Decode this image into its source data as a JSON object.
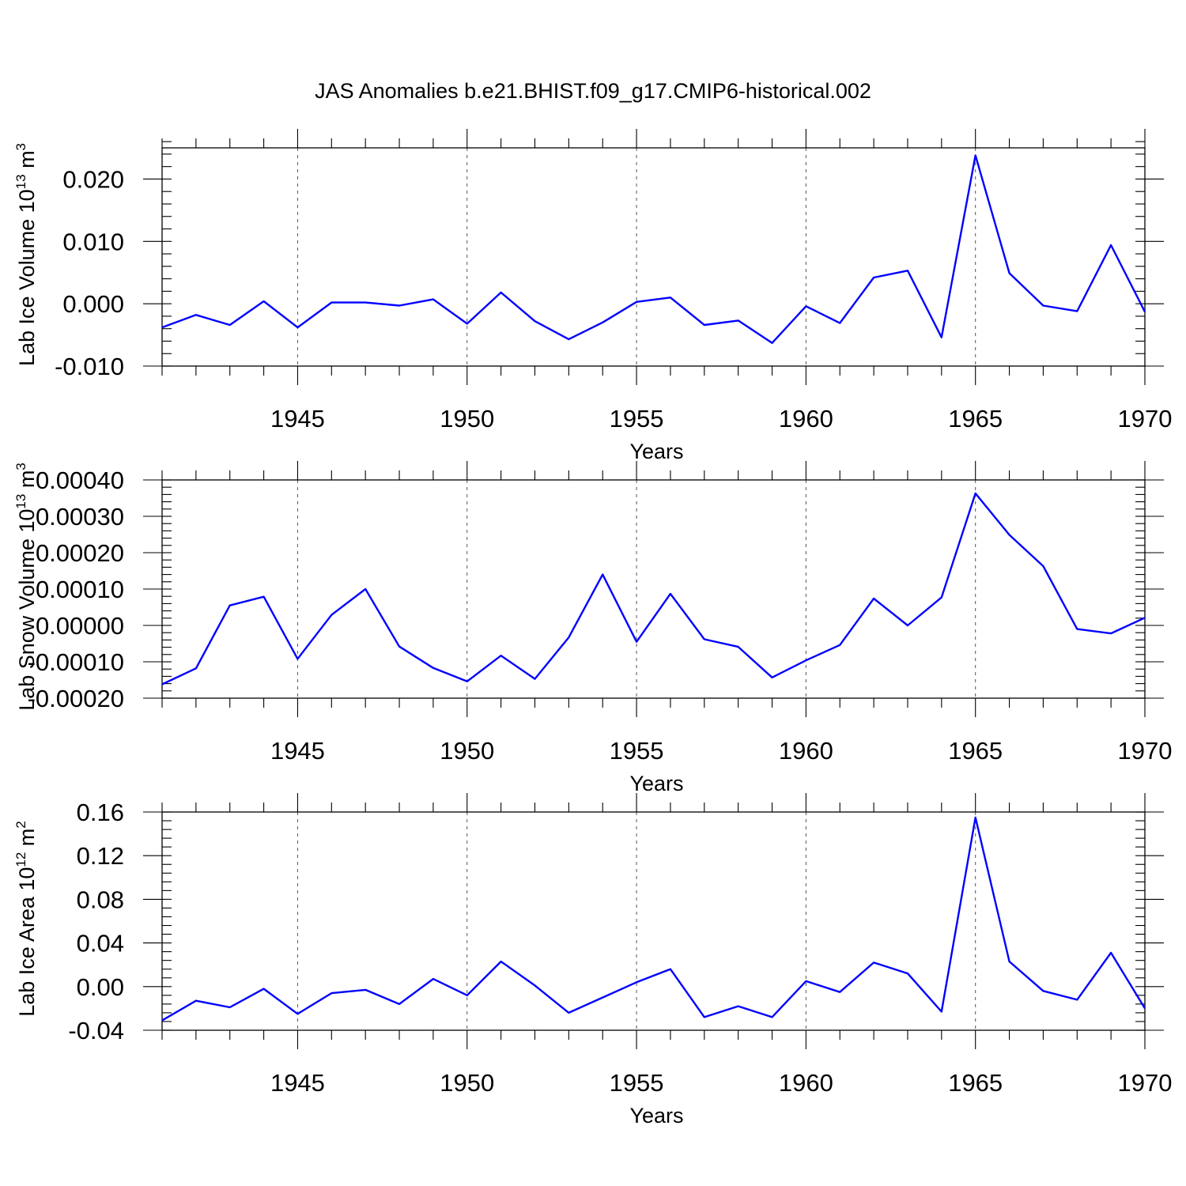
{
  "title": "JAS Anomalies b.e21.BHIST.f09_g17.CMIP6-historical.002",
  "colors": {
    "series": "#0000ff",
    "grid": "#555555",
    "axis": "#000000"
  },
  "chart_data": [
    {
      "type": "line",
      "title": "JAS Anomalies b.e21.BHIST.f09_g17.CMIP6-historical.002",
      "ylabel": {
        "text": "Lab Ice Volume 10",
        "sup": "13",
        "unit": " m",
        "unit_sup": "3"
      },
      "xlabel": "Years",
      "xlim": [
        1941,
        1970
      ],
      "ylim": [
        -0.01,
        0.025
      ],
      "yticks": [
        -0.01,
        0.0,
        0.01,
        0.02
      ],
      "ytick_labels": [
        "-0.010",
        "0.000",
        "0.010",
        "0.020"
      ],
      "yminor_step": 0.002,
      "xticks": [
        1945,
        1950,
        1955,
        1960,
        1965,
        1970
      ],
      "xtick_labels": [
        "1945",
        "1950",
        "1955",
        "1960",
        "1965",
        "1970"
      ],
      "grid_x": [
        1945,
        1950,
        1955,
        1960,
        1965
      ],
      "x": [
        1941,
        1942,
        1943,
        1944,
        1945,
        1946,
        1947,
        1948,
        1949,
        1950,
        1951,
        1952,
        1953,
        1954,
        1955,
        1956,
        1957,
        1958,
        1959,
        1960,
        1961,
        1962,
        1963,
        1964,
        1965,
        1966,
        1967,
        1968,
        1969,
        1970
      ],
      "values": [
        -0.0038,
        -0.0018,
        -0.0034,
        0.0004,
        -0.0038,
        0.0002,
        0.0002,
        -0.0003,
        0.0007,
        -0.0032,
        0.0018,
        -0.0028,
        -0.0057,
        -0.003,
        0.0003,
        0.001,
        -0.0034,
        -0.0027,
        -0.0063,
        -0.0004,
        -0.0031,
        0.0042,
        0.0053,
        -0.0054,
        0.0238,
        0.0049,
        -0.0003,
        -0.0012,
        0.0094,
        -0.0013
      ]
    },
    {
      "type": "line",
      "ylabel": {
        "text": "Lab Snow Volume 10",
        "sup": "13",
        "unit": " m",
        "unit_sup": "3"
      },
      "xlabel": "Years",
      "xlim": [
        1941,
        1970
      ],
      "ylim": [
        -0.0002,
        0.0004
      ],
      "yticks": [
        -0.0002,
        -0.0001,
        0.0,
        0.0001,
        0.0002,
        0.0003,
        0.0004
      ],
      "ytick_labels": [
        "-0.00020",
        "-0.00010",
        "0.00000",
        "0.00010",
        "0.00020",
        "0.00030",
        "0.00040"
      ],
      "yminor_step": 2e-05,
      "xticks": [
        1945,
        1950,
        1955,
        1960,
        1965,
        1970
      ],
      "xtick_labels": [
        "1945",
        "1950",
        "1955",
        "1960",
        "1965",
        "1970"
      ],
      "grid_x": [
        1945,
        1950,
        1955,
        1960,
        1965
      ],
      "x": [
        1941,
        1942,
        1943,
        1944,
        1945,
        1946,
        1947,
        1948,
        1949,
        1950,
        1951,
        1952,
        1953,
        1954,
        1955,
        1956,
        1957,
        1958,
        1959,
        1960,
        1961,
        1962,
        1963,
        1964,
        1965,
        1966,
        1967,
        1968,
        1969,
        1970
      ],
      "values": [
        -0.000162,
        -0.000118,
        5.5e-05,
        7.9e-05,
        -9.2e-05,
        2.9e-05,
        0.0001,
        -5.8e-05,
        -0.000117,
        -0.000154,
        -8.3e-05,
        -0.000147,
        -3.3e-05,
        0.00014,
        -4.5e-05,
        8.7e-05,
        -3.8e-05,
        -5.9e-05,
        -0.000143,
        -9.6e-05,
        -5.4e-05,
        7.4e-05,
        0.0,
        7.7e-05,
        0.000363,
        0.000249,
        0.000163,
        -1e-05,
        -2.2e-05,
        2.1e-05
      ]
    },
    {
      "type": "line",
      "ylabel": {
        "text": "Lab Ice Area 10",
        "sup": "12",
        "unit": " m",
        "unit_sup": "2"
      },
      "xlabel": "Years",
      "xlim": [
        1941,
        1970
      ],
      "ylim": [
        -0.04,
        0.16
      ],
      "yticks": [
        -0.04,
        0.0,
        0.04,
        0.08,
        0.12,
        0.16
      ],
      "ytick_labels": [
        "-0.04",
        "0.00",
        "0.04",
        "0.08",
        "0.12",
        "0.16"
      ],
      "yminor_step": 0.008,
      "xticks": [
        1945,
        1950,
        1955,
        1960,
        1965,
        1970
      ],
      "xtick_labels": [
        "1945",
        "1950",
        "1955",
        "1960",
        "1965",
        "1970"
      ],
      "grid_x": [
        1945,
        1950,
        1955,
        1960,
        1965
      ],
      "x": [
        1941,
        1942,
        1943,
        1944,
        1945,
        1946,
        1947,
        1948,
        1949,
        1950,
        1951,
        1952,
        1953,
        1954,
        1955,
        1956,
        1957,
        1958,
        1959,
        1960,
        1961,
        1962,
        1963,
        1964,
        1965,
        1966,
        1967,
        1968,
        1969,
        1970
      ],
      "values": [
        -0.031,
        -0.013,
        -0.019,
        -0.002,
        -0.025,
        -0.006,
        -0.003,
        -0.016,
        0.007,
        -0.008,
        0.023,
        0.001,
        -0.024,
        -0.01,
        0.004,
        0.016,
        -0.028,
        -0.018,
        -0.028,
        0.005,
        -0.005,
        0.022,
        0.012,
        -0.023,
        0.155,
        0.023,
        -0.004,
        -0.012,
        0.031,
        -0.02
      ]
    }
  ]
}
